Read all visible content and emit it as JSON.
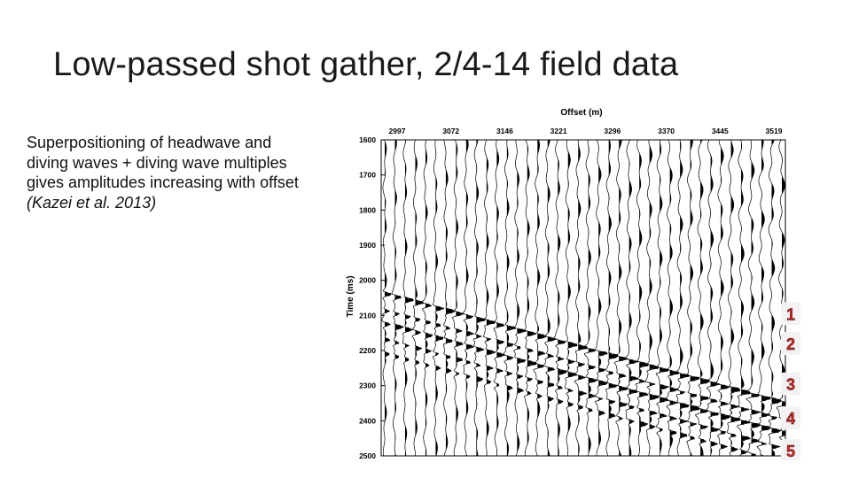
{
  "slide": {
    "title": "Low-passed shot gather, 2/4-14 field data",
    "body_text": "Superpositioning of headwave and diving waves + diving wave multiples gives amplitudes increasing with offset",
    "citation": "(Kazei et al. 2013)"
  },
  "figure": {
    "x_axis_label": "Offset (m)",
    "y_axis_label": "Time (ms)",
    "x_ticks": [
      "2997",
      "3072",
      "3146",
      "3221",
      "3296",
      "3370",
      "3445",
      "3519"
    ],
    "y_ticks": [
      "1600",
      "1700",
      "1800",
      "1900",
      "2000",
      "2100",
      "2200",
      "2300",
      "2400",
      "2500"
    ],
    "time_range": [
      1600,
      2500
    ],
    "markers": [
      {
        "label": "1",
        "time": 2095
      },
      {
        "label": "2",
        "time": 2180
      },
      {
        "label": "3",
        "time": 2295
      },
      {
        "label": "4",
        "time": 2392
      },
      {
        "label": "5",
        "time": 2485
      }
    ],
    "marker_color": "#e02020"
  }
}
